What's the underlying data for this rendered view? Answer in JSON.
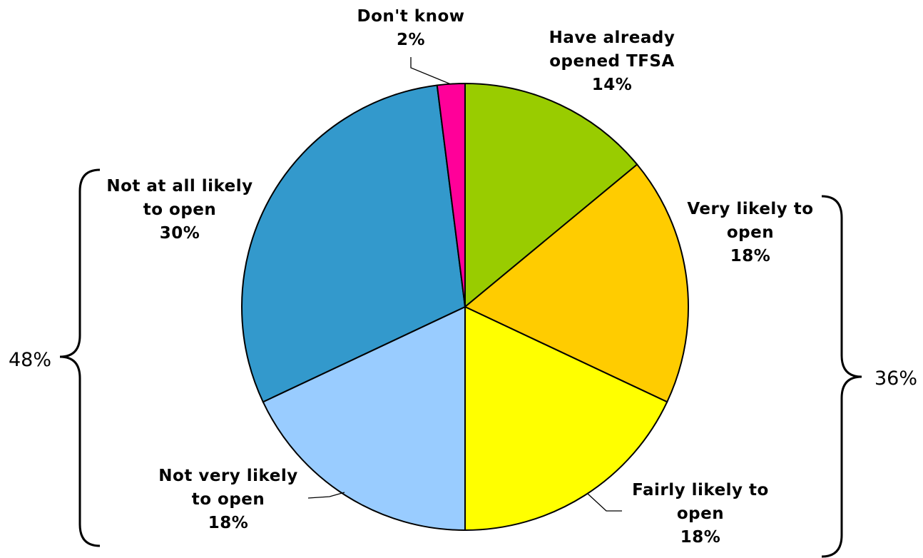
{
  "chart_data": {
    "type": "pie",
    "title": "",
    "slices": [
      {
        "label_lines": [
          "Have already",
          "opened TFSA"
        ],
        "value": 14,
        "value_label": "14%",
        "color": "#99CC00"
      },
      {
        "label_lines": [
          "Very likely to",
          "open"
        ],
        "value": 18,
        "value_label": "18%",
        "color": "#FFCC00"
      },
      {
        "label_lines": [
          "Fairly likely to",
          "open"
        ],
        "value": 18,
        "value_label": "18%",
        "color": "#FFFF00"
      },
      {
        "label_lines": [
          "Not very likely",
          "to open"
        ],
        "value": 18,
        "value_label": "18%",
        "color": "#99CCFF"
      },
      {
        "label_lines": [
          "Not at all likely",
          "to open"
        ],
        "value": 30,
        "value_label": "30%",
        "color": "#3399CC"
      },
      {
        "label_lines": [
          "Don't know"
        ],
        "value": 2,
        "value_label": "2%",
        "color": "#FF0099"
      }
    ],
    "start_angle": "12 o'clock",
    "direction": "clockwise",
    "groups": [
      {
        "label": "36%",
        "side": "right",
        "covers": [
          "Very likely to open",
          "Fairly likely to open"
        ]
      },
      {
        "label": "48%",
        "side": "left",
        "covers": [
          "Not very likely to open",
          "Not at all likely to open"
        ]
      }
    ]
  }
}
